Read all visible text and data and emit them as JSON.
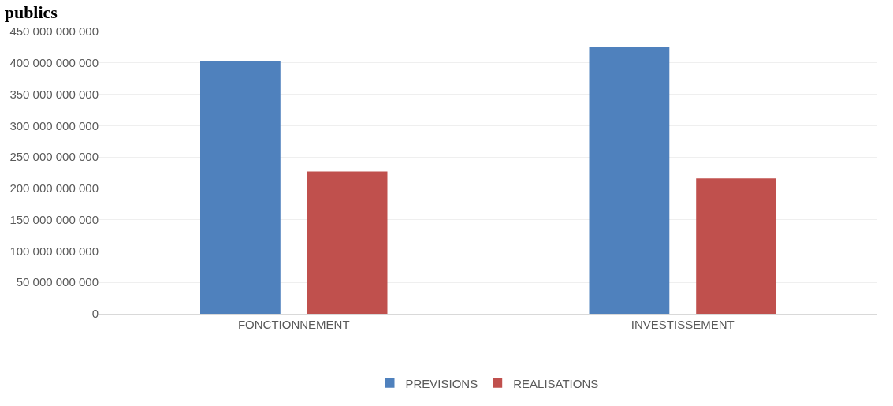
{
  "chart_data": {
    "type": "bar",
    "title": "publics",
    "categories": [
      "FONCTIONNEMENT",
      "INVESTISSEMENT"
    ],
    "series": [
      {
        "name": "PREVISIONS",
        "color": "#4f81bd",
        "values": [
          403000000000,
          425000000000
        ]
      },
      {
        "name": "REALISATIONS",
        "color": "#c0504d",
        "values": [
          227000000000,
          216000000000
        ]
      }
    ],
    "ylim": [
      0,
      450000000000
    ],
    "yticks": [
      {
        "value": 0,
        "label": "0"
      },
      {
        "value": 50000000000,
        "label": "50 000 000 000"
      },
      {
        "value": 100000000000,
        "label": "100 000 000 000"
      },
      {
        "value": 150000000000,
        "label": "150 000 000 000"
      },
      {
        "value": 200000000000,
        "label": "200 000 000 000"
      },
      {
        "value": 250000000000,
        "label": "250 000 000 000"
      },
      {
        "value": 300000000000,
        "label": "300 000 000 000"
      },
      {
        "value": 350000000000,
        "label": "350 000 000 000"
      },
      {
        "value": 400000000000,
        "label": "400 000 000 000"
      },
      {
        "value": 450000000000,
        "label": "450 000 000 000"
      }
    ],
    "grid": "y",
    "legend": "bottom"
  }
}
